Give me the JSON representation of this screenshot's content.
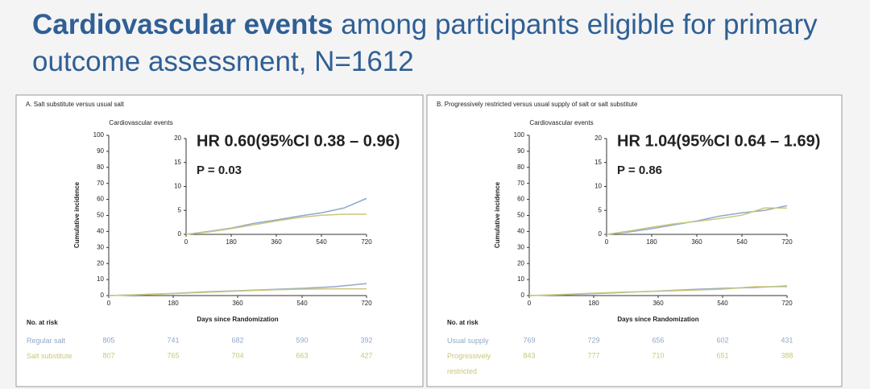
{
  "slide_title": {
    "bold": "Cardiovascular events",
    "rest": "among participants eligible for primary outcome assessment, N=1612"
  },
  "chart_data": [
    {
      "type": "line",
      "panel_label": "A. Salt substitute versus usual salt",
      "title": "Cardiovascular events",
      "x_label": "Days since Randomization",
      "y_label": "Cumulative incidence",
      "x": [
        0,
        90,
        180,
        270,
        360,
        450,
        540,
        630,
        720
      ],
      "xlim": [
        0,
        720
      ],
      "xticks": [
        0,
        180,
        360,
        540,
        720
      ],
      "ylim": [
        0,
        100
      ],
      "yticks": [
        0,
        10,
        20,
        30,
        40,
        50,
        60,
        70,
        80,
        90,
        100
      ],
      "inset_ylim": [
        0,
        20
      ],
      "inset_yticks": [
        0,
        5,
        10,
        15,
        20
      ],
      "series": [
        {
          "name": "Regular salt",
          "color": "#8fa8cc",
          "values": [
            0,
            0.6,
            1.3,
            2.3,
            3.0,
            3.8,
            4.5,
            5.5,
            7.5
          ],
          "at_risk": [
            805,
            741,
            682,
            590,
            392
          ]
        },
        {
          "name": "Salt substitute",
          "color": "#c9c77a",
          "values": [
            0,
            0.5,
            1.2,
            2.0,
            2.8,
            3.5,
            4.0,
            4.2,
            4.2
          ],
          "at_risk": [
            807,
            765,
            704,
            663,
            427
          ]
        }
      ],
      "annotations": [
        "HR 0.60(95%CI 0.38 – 0.96)",
        "P = 0.03"
      ],
      "risk_label": "No. at risk"
    },
    {
      "type": "line",
      "panel_label": "B. Progressively restricted versus usual supply of salt or salt substitute",
      "title": "Cardiovascular events",
      "x_label": "Days since Randomization",
      "y_label": "Cumulative incidence",
      "x": [
        0,
        90,
        180,
        270,
        360,
        450,
        540,
        630,
        720
      ],
      "xlim": [
        0,
        720
      ],
      "xticks": [
        0,
        180,
        360,
        540,
        720
      ],
      "ylim": [
        0,
        100
      ],
      "yticks": [
        0,
        10,
        20,
        30,
        40,
        50,
        60,
        70,
        80,
        90,
        100
      ],
      "inset_ylim": [
        0,
        20
      ],
      "inset_yticks": [
        0,
        5,
        10,
        15,
        20
      ],
      "series": [
        {
          "name": "Usual supply",
          "color": "#8fa8cc",
          "values": [
            0,
            0.5,
            1.2,
            2.0,
            2.8,
            3.8,
            4.5,
            5.0,
            6.0
          ],
          "at_risk": [
            769,
            729,
            656,
            602,
            431
          ]
        },
        {
          "name": "Progressively restricted",
          "color": "#c9c77a",
          "values": [
            0,
            0.7,
            1.5,
            2.2,
            2.7,
            3.3,
            4.0,
            5.5,
            5.5
          ],
          "at_risk": [
            843,
            777,
            710,
            651,
            388
          ]
        }
      ],
      "annotations": [
        "HR 1.04(95%CI 0.64 – 1.69)",
        "P = 0.86"
      ],
      "risk_label": "No. at risk"
    }
  ]
}
